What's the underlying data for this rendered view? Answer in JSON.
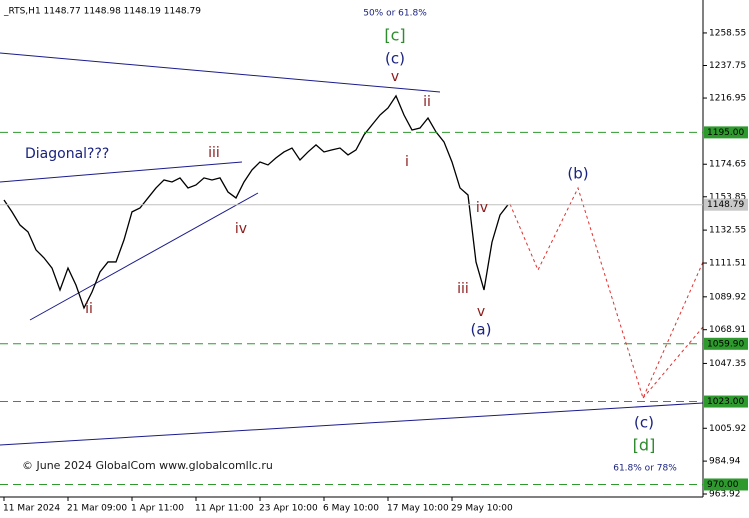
{
  "chart_data": {
    "type": "line",
    "title": "_RTS,H1 1148.77 1148.98 1148.19 1148.79",
    "categories": [
      "11 Mar 2024",
      null,
      null,
      null,
      null,
      null,
      null,
      null,
      "21 Mar 09:00",
      null,
      null,
      null,
      null,
      null,
      null,
      null,
      "1 Apr 11:00",
      null,
      null,
      null,
      null,
      null,
      null,
      null,
      "11 Apr 11:00",
      null,
      null,
      null,
      null,
      null,
      null,
      null,
      "23 Apr 10:00",
      null,
      null,
      null,
      null,
      null,
      null,
      null,
      "6 May 10:00",
      null,
      null,
      null,
      null,
      null,
      null,
      null,
      "17 May 10:00",
      null,
      null,
      null,
      null,
      null,
      null,
      null,
      "29 May 10:00",
      null,
      null,
      null,
      null,
      null,
      null,
      null
    ],
    "values": [
      1151.8,
      1144.2,
      1135.8,
      1131.4,
      1119.9,
      1114.8,
      1108.3,
      1094.3,
      1108.3,
      1097.4,
      1082.8,
      1093.0,
      1105.8,
      1112.2,
      1112.2,
      1126.3,
      1144.2,
      1146.7,
      1153.1,
      1159.5,
      1164.6,
      1163.3,
      1165.9,
      1159.5,
      1161.4,
      1165.9,
      1164.6,
      1165.9,
      1156.9,
      1153.1,
      1163.3,
      1171.0,
      1176.1,
      1174.2,
      1178.7,
      1182.5,
      1185.0,
      1177.4,
      1182.5,
      1187.0,
      1182.5,
      1183.8,
      1185.0,
      1180.6,
      1183.8,
      1193.4,
      1199.8,
      1206.1,
      1210.6,
      1218.3,
      1206.1,
      1196.5,
      1197.8,
      1204.2,
      1195.3,
      1188.9,
      1176.1,
      1159.5,
      1155.0,
      1112.2,
      1094.3,
      1124.9,
      1142.2,
      1148.79
    ],
    "color": "#000000",
    "ylim": [
      962,
      1279.6
    ],
    "yticks": [
      1258.55,
      1237.75,
      1216.95,
      1174.65,
      1153.85,
      1132.55,
      1111.51,
      1089.92,
      1068.91,
      1047.35,
      1005.92,
      984.94,
      963.92
    ],
    "levels": [
      {
        "value": 1195,
        "label": "1195.00"
      },
      {
        "value": 1059.9,
        "label": "1059.90"
      },
      {
        "value": 1023,
        "label": "1023.00"
      },
      {
        "value": 970,
        "label": "970.00"
      }
    ],
    "level_color": "#2e9a2e",
    "last_price": 1148.79,
    "annotations": [
      {
        "text": "50% or 61.8%",
        "color": "#1a237e"
      },
      {
        "text": "[c]",
        "color": "#2e8b2e"
      },
      {
        "text": "(c)",
        "color": "#1a237e"
      },
      {
        "text": "v",
        "color": "#8b1a1a"
      },
      {
        "text": "ii",
        "color": "#8b1a1a"
      },
      {
        "text": "i",
        "color": "#8b1a1a"
      },
      {
        "text": "Diagonal???",
        "color": "#1a237e"
      },
      {
        "text": "iii",
        "color": "#8b1a1a"
      },
      {
        "text": "iv",
        "color": "#8b1a1a"
      },
      {
        "text": "ii",
        "color": "#8b1a1a"
      },
      {
        "text": "iv",
        "color": "#8b1a1a"
      },
      {
        "text": "iii",
        "color": "#8b1a1a"
      },
      {
        "text": "v",
        "color": "#8b1a1a"
      },
      {
        "text": "(a)",
        "color": "#1a237e"
      },
      {
        "text": "(b)",
        "color": "#1a237e"
      },
      {
        "text": "(c)",
        "color": "#1a237e"
      },
      {
        "text": "[d]",
        "color": "#2e8b2e"
      },
      {
        "text": "61.8% or 78%",
        "color": "#1a237e"
      },
      {
        "text": "© June 2024 GlobalCom www.globalcomllc.ru",
        "color": "#1a1a1a"
      }
    ]
  }
}
